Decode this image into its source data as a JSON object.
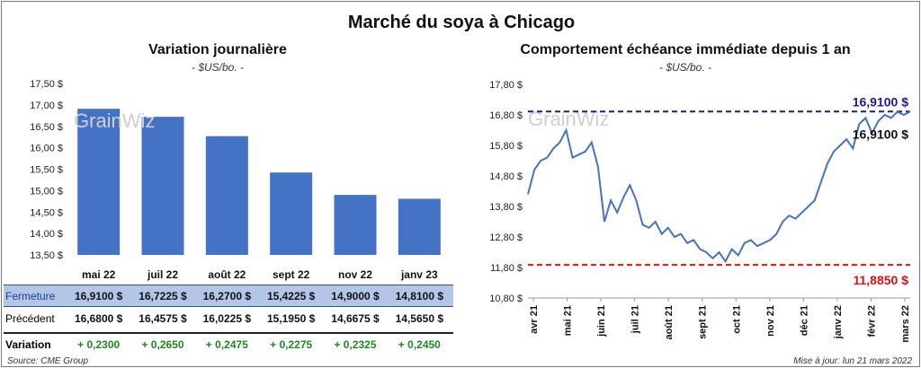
{
  "title": "Marché du soya à Chicago",
  "left_panel": {
    "title": "Variation journalière",
    "subtitle": "- $US/bo. -",
    "watermark": "GrainWiz"
  },
  "right_panel": {
    "title": "Comportement échéance immédiate depuis 1 an",
    "subtitle": "- $US/bo. -",
    "watermark": "GrainWiz",
    "current_label": "16,9100 $",
    "high_label": "16,9100 $",
    "low_label": "11,8850 $"
  },
  "table": {
    "rows": [
      {
        "label": "Fermeture",
        "values": [
          "16,9100  $",
          "16,7225  $",
          "16,2700  $",
          "15,4225  $",
          "14,9000  $",
          "14,8100  $"
        ]
      },
      {
        "label": "Précédent",
        "values": [
          "16,6800  $",
          "16,4575  $",
          "16,0225  $",
          "15,1950  $",
          "14,6675  $",
          "14,5650  $"
        ]
      },
      {
        "label": "Variation",
        "values": [
          "+ 0,2300",
          "+ 0,2650",
          "+ 0,2475",
          "+ 0,2275",
          "+ 0,2325",
          "+ 0,2450"
        ]
      }
    ]
  },
  "footer": {
    "source": "Source: CME Group",
    "updated": "Mise à jour: lun 21 mars 2022"
  },
  "colors": {
    "bar": "#4472c4",
    "line": "#4472c4",
    "high": "#1a1a9a",
    "low": "#e01010",
    "variation": "#1e8a1e"
  },
  "chart_data": [
    {
      "type": "bar",
      "title": "Variation journalière",
      "categories": [
        "mai 22",
        "juil 22",
        "août 22",
        "sept 22",
        "nov 22",
        "janv 23"
      ],
      "values": [
        16.91,
        16.7225,
        16.27,
        15.4225,
        14.9,
        14.81
      ],
      "ylim": [
        13.5,
        17.5
      ],
      "yticks": [
        "13,50 $",
        "14,00 $",
        "14,50 $",
        "15,00 $",
        "15,50 $",
        "16,00 $",
        "16,50 $",
        "17,00 $",
        "17,50 $"
      ],
      "ylabel": "$US/bo."
    },
    {
      "type": "line",
      "title": "Comportement échéance immédiate depuis 1 an",
      "ylabel": "$US/bo.",
      "ylim": [
        10.8,
        17.8
      ],
      "yticks": [
        "10,80 $",
        "11,80 $",
        "12,80 $",
        "13,80 $",
        "14,80 $",
        "15,80 $",
        "16,80 $",
        "17,80 $"
      ],
      "xlabels": [
        "avr 21",
        "mai 21",
        "juin 21",
        "juil 21",
        "août 21",
        "sept 21",
        "oct 21",
        "nov 21",
        "déc 21",
        "janv 22",
        "févr 22",
        "mars 22"
      ],
      "high": 16.91,
      "low": 11.885,
      "current": 16.91,
      "x": [
        0,
        0.2,
        0.4,
        0.6,
        0.8,
        1.0,
        1.2,
        1.4,
        1.6,
        1.8,
        2.0,
        2.2,
        2.4,
        2.6,
        2.8,
        3.0,
        3.2,
        3.4,
        3.6,
        3.8,
        4.0,
        4.2,
        4.4,
        4.6,
        4.8,
        5.0,
        5.2,
        5.4,
        5.6,
        5.8,
        6.0,
        6.2,
        6.4,
        6.6,
        6.8,
        7.0,
        7.2,
        7.4,
        7.6,
        7.8,
        8.0,
        8.2,
        8.4,
        8.6,
        8.8,
        9.0,
        9.2,
        9.4,
        9.6,
        9.8,
        10.0,
        10.2,
        10.4,
        10.6,
        10.8,
        11.0,
        11.2,
        11.4,
        11.6,
        11.8,
        12.0
      ],
      "y": [
        14.2,
        15.0,
        15.3,
        15.4,
        15.7,
        15.9,
        16.3,
        15.4,
        15.5,
        15.6,
        15.9,
        15.1,
        13.3,
        14.0,
        13.6,
        14.1,
        14.5,
        14.0,
        13.2,
        13.1,
        13.3,
        12.9,
        13.1,
        12.8,
        12.9,
        12.6,
        12.7,
        12.4,
        12.3,
        12.1,
        12.3,
        12.0,
        12.4,
        12.2,
        12.6,
        12.7,
        12.5,
        12.6,
        12.7,
        12.9,
        13.3,
        13.5,
        13.4,
        13.6,
        13.8,
        14.0,
        14.6,
        15.2,
        15.6,
        15.8,
        16.0,
        15.7,
        16.5,
        16.7,
        16.2,
        16.6,
        16.8,
        16.7,
        16.9,
        16.8,
        16.91
      ]
    }
  ]
}
